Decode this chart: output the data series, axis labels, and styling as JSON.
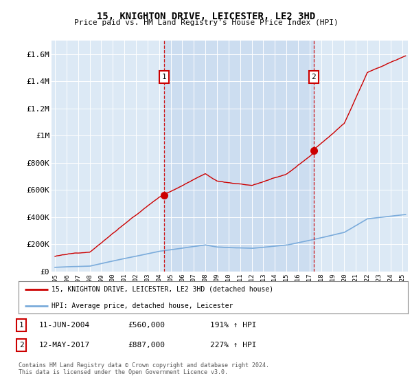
{
  "title": "15, KNIGHTON DRIVE, LEICESTER, LE2 3HD",
  "subtitle": "Price paid vs. HM Land Registry's House Price Index (HPI)",
  "bg_color": "#dce9f5",
  "bg_color_highlight": "#ccddf0",
  "line1_color": "#cc0000",
  "line2_color": "#7aabdb",
  "ylim": [
    0,
    1700000
  ],
  "yticks": [
    0,
    200000,
    400000,
    600000,
    800000,
    1000000,
    1200000,
    1400000,
    1600000
  ],
  "ytick_labels": [
    "£0",
    "£200K",
    "£400K",
    "£600K",
    "£800K",
    "£1M",
    "£1.2M",
    "£1.4M",
    "£1.6M"
  ],
  "xlim_start": 1994.7,
  "xlim_end": 2025.5,
  "xticks": [
    1995,
    1996,
    1997,
    1998,
    1999,
    2000,
    2001,
    2002,
    2003,
    2004,
    2005,
    2006,
    2007,
    2008,
    2009,
    2010,
    2011,
    2012,
    2013,
    2014,
    2015,
    2016,
    2017,
    2018,
    2019,
    2020,
    2021,
    2022,
    2023,
    2024,
    2025
  ],
  "transaction1": {
    "year": 2004.44,
    "price": 560000,
    "label": "1"
  },
  "transaction2": {
    "year": 2017.36,
    "price": 887000,
    "label": "2"
  },
  "legend_line1": "15, KNIGHTON DRIVE, LEICESTER, LE2 3HD (detached house)",
  "legend_line2": "HPI: Average price, detached house, Leicester",
  "note1_label": "1",
  "note1_date": "11-JUN-2004",
  "note1_price": "£560,000",
  "note1_hpi": "191% ↑ HPI",
  "note2_label": "2",
  "note2_date": "12-MAY-2017",
  "note2_price": "£887,000",
  "note2_hpi": "227% ↑ HPI",
  "footer": "Contains HM Land Registry data © Crown copyright and database right 2024.\nThis data is licensed under the Open Government Licence v3.0."
}
